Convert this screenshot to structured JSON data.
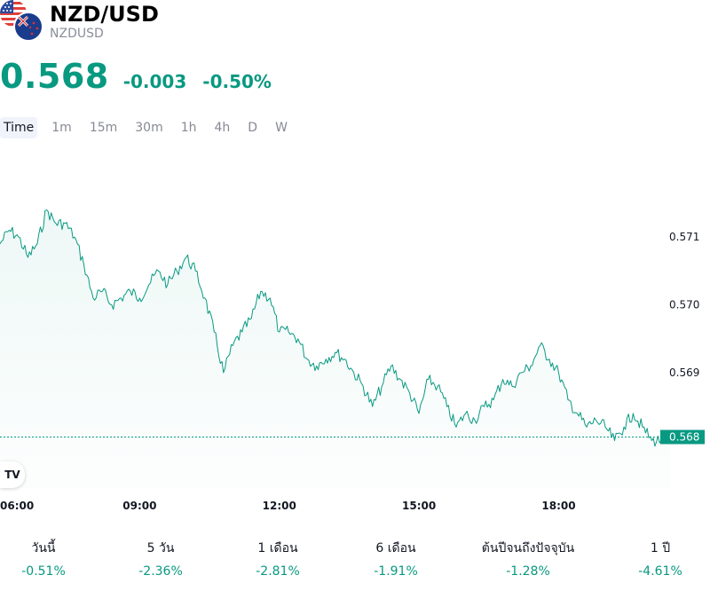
{
  "header": {
    "symbol": "NZD/USD",
    "ticker": "NZDUSD",
    "flag_icons": [
      "us-flag-icon",
      "nz-flag-icon"
    ]
  },
  "quote": {
    "price": "0.568",
    "change": "-0.003",
    "change_percent": "-0.50%",
    "color": "#089981"
  },
  "timeframes": [
    {
      "label": "Time",
      "active": true
    },
    {
      "label": "1m",
      "active": false
    },
    {
      "label": "15m",
      "active": false
    },
    {
      "label": "30m",
      "active": false
    },
    {
      "label": "1h",
      "active": false
    },
    {
      "label": "4h",
      "active": false
    },
    {
      "label": "D",
      "active": false
    },
    {
      "label": "W",
      "active": false
    }
  ],
  "chart_data": {
    "type": "area",
    "title": "",
    "xlabel": "",
    "ylabel": "",
    "x_ticks": [
      "06:00",
      "09:00",
      "12:00",
      "15:00",
      "18:00"
    ],
    "y_ticks": [
      0.568,
      0.569,
      0.57,
      0.571
    ],
    "ylim": [
      0.5673,
      0.5724
    ],
    "xlim": [
      6.0,
      21.25
    ],
    "last_price_label": "0.568",
    "last_value": 0.568,
    "line_color": "#089981",
    "grid": false,
    "series": [
      {
        "x": [
          6.0,
          6.2,
          6.4,
          6.6,
          6.8,
          7.0,
          7.2,
          7.4,
          7.6,
          7.8,
          8.0,
          8.2,
          8.4,
          8.6,
          8.8,
          9.0,
          9.2,
          9.4,
          9.6,
          9.8,
          10.0,
          10.2,
          10.4,
          10.6,
          10.8,
          11.0,
          11.2,
          11.4,
          11.6,
          11.8,
          12.0,
          12.2,
          12.4,
          12.6,
          12.8,
          13.0,
          13.2,
          13.4,
          13.6,
          13.8,
          14.0,
          14.2,
          14.4,
          14.6,
          14.8,
          15.0,
          15.2,
          15.4,
          15.6,
          15.8,
          16.0,
          16.2,
          16.4,
          16.6,
          16.8,
          17.0,
          17.2,
          17.4,
          17.6,
          17.8,
          18.0,
          18.2,
          18.4,
          18.6,
          18.8,
          19.0,
          19.2,
          19.4,
          19.6,
          19.8,
          20.0,
          20.2,
          20.4
        ],
        "y": [
          0.5709,
          0.5711,
          0.571,
          0.5707,
          0.5709,
          0.5714,
          0.5712,
          0.5712,
          0.571,
          0.5706,
          0.5701,
          0.5702,
          0.57,
          0.5701,
          0.5702,
          0.5701,
          0.5703,
          0.5705,
          0.5703,
          0.5705,
          0.5707,
          0.5705,
          0.5701,
          0.5696,
          0.569,
          0.5694,
          0.5696,
          0.5698,
          0.5702,
          0.5701,
          0.5696,
          0.5696,
          0.5695,
          0.5692,
          0.5691,
          0.5692,
          0.5693,
          0.5692,
          0.569,
          0.5688,
          0.5685,
          0.5688,
          0.5691,
          0.5689,
          0.5687,
          0.5684,
          0.5689,
          0.5688,
          0.5685,
          0.5682,
          0.5684,
          0.5683,
          0.5685,
          0.5686,
          0.5689,
          0.5688,
          0.569,
          0.5691,
          0.5694,
          0.5692,
          0.569,
          0.5686,
          0.5684,
          0.5682,
          0.5683,
          0.5682,
          0.568,
          0.5682,
          0.5684,
          0.5682,
          0.568,
          0.568,
          0.568
        ]
      }
    ]
  },
  "performance": [
    {
      "label": "วันนี้",
      "value": "-0.51%"
    },
    {
      "label": "5 วัน",
      "value": "-2.36%"
    },
    {
      "label": "1 เดือน",
      "value": "-2.81%"
    },
    {
      "label": "6 เดือน",
      "value": "-1.91%"
    },
    {
      "label": "ต้นปีจนถึงปัจจุบัน",
      "value": "-1.28%"
    },
    {
      "label": "1 ปี",
      "value": "-4.61%"
    }
  ],
  "logo_text": "TV"
}
